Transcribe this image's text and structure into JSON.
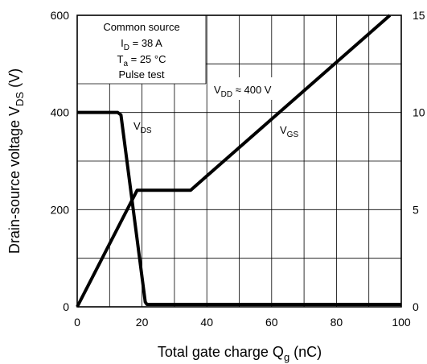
{
  "chart_data": {
    "type": "line",
    "xlabel_main": "Total gate charge  Q",
    "xlabel_sub": "g",
    "xlabel_unit": "  (nC)",
    "ylabel_main": "Drain-source voltage  V",
    "ylabel_sub": "DS",
    "ylabel_unit": "  (V)",
    "xlim": [
      0,
      100
    ],
    "ylim": [
      0,
      600
    ],
    "y2lim": [
      0,
      15
    ],
    "x_ticks": [
      "0",
      "20",
      "40",
      "60",
      "80",
      "100"
    ],
    "y_ticks": [
      "0",
      "200",
      "400",
      "600"
    ],
    "y2_ticks": [
      "0",
      "5",
      "10",
      "15"
    ],
    "grid": true,
    "series": [
      {
        "name": "VDS",
        "axis": "left",
        "x": [
          0,
          12.5,
          13.5,
          21,
          21.5,
          100
        ],
        "y": [
          400,
          400,
          395,
          10,
          5,
          5
        ]
      },
      {
        "name": "VGS",
        "axis": "right",
        "x": [
          0,
          18.5,
          35,
          96.5
        ],
        "y": [
          0,
          6,
          6,
          15
        ]
      }
    ],
    "conditions": {
      "line1": "Common source",
      "line2_main": "I",
      "line2_sub": "D",
      "line2_rest": " = 38 A",
      "line3_main": "T",
      "line3_sub": "a",
      "line3_rest": " = 25 °C",
      "line4": "Pulse test"
    },
    "annotations": {
      "vdd_main": "V",
      "vdd_sub": "DD",
      "vdd_rest": " ≈ 400 V",
      "vds_main": "V",
      "vds_sub": "DS",
      "vgs_main": "V",
      "vgs_sub": "GS"
    }
  }
}
